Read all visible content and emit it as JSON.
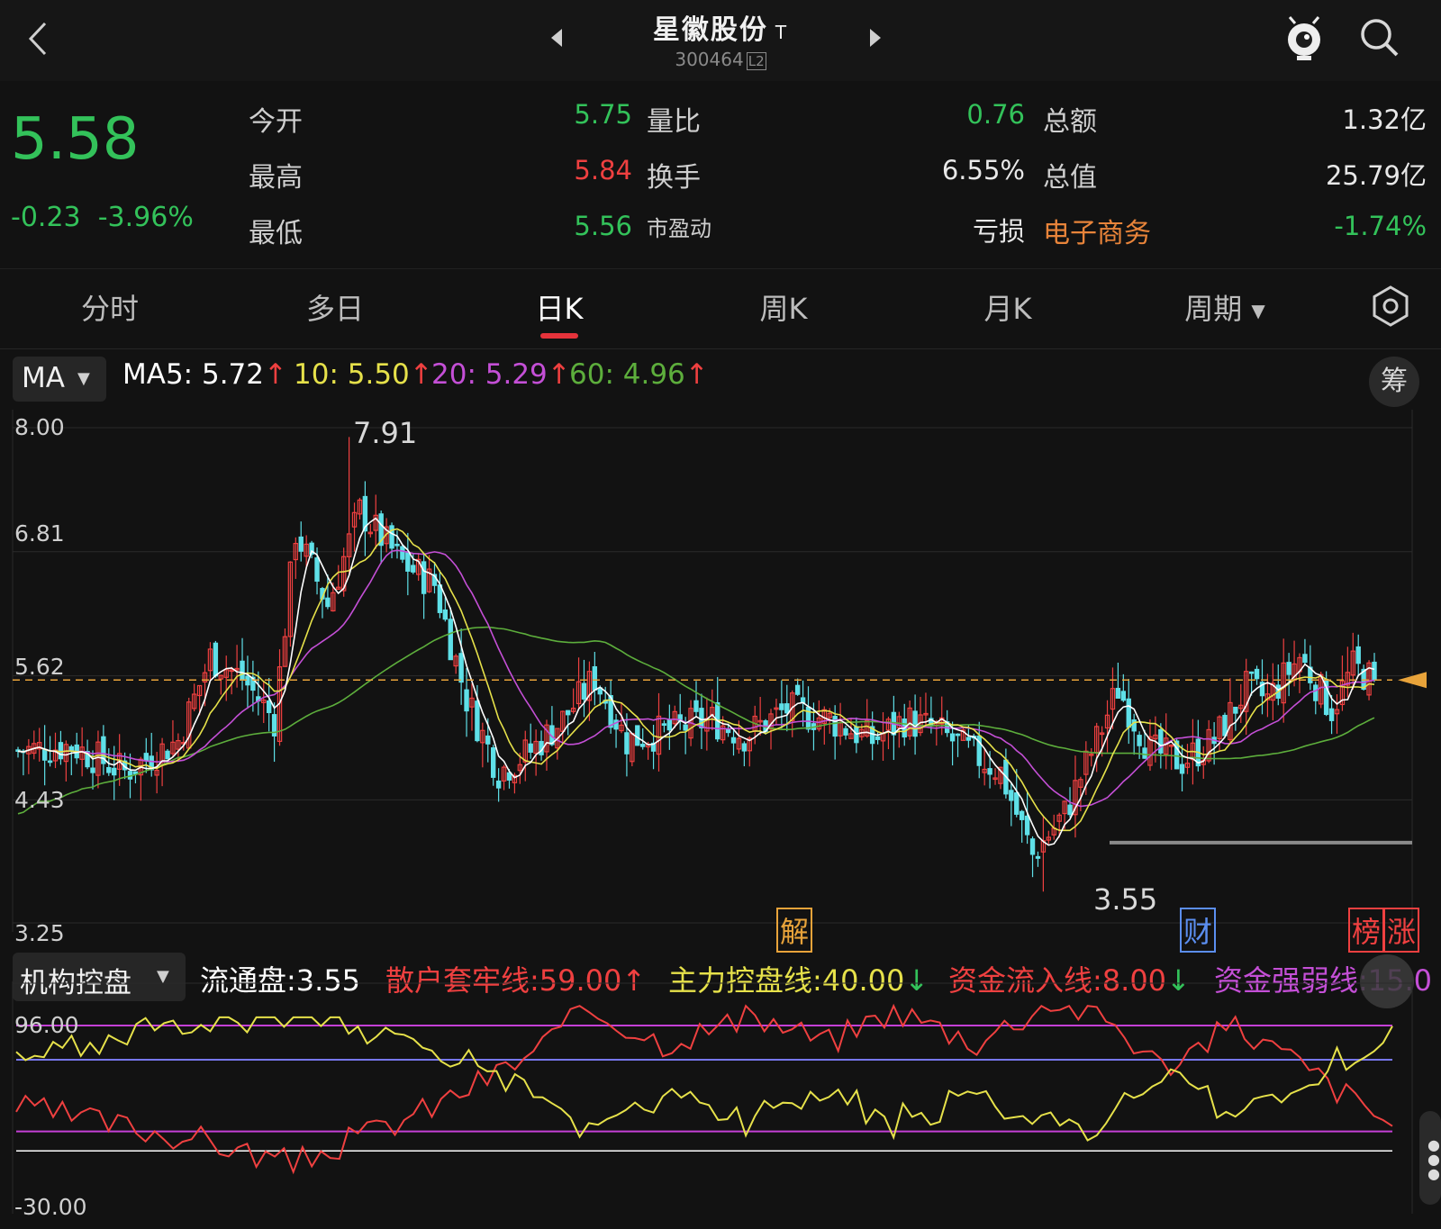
{
  "header": {
    "title": "星徽股份",
    "title_tag": "T",
    "code": "300464",
    "code_tag": "L2"
  },
  "quote": {
    "price": "5.58",
    "change": "-0.23",
    "change_pct": "-3.96%",
    "rows": [
      {
        "l1": "今开",
        "v1": "5.75",
        "c1": "#33c25a",
        "l2": "量比",
        "v2": "0.76",
        "c2": "#33c25a",
        "l3": "总额",
        "v3": "1.32亿",
        "c3": "#e8e8e8"
      },
      {
        "l1": "最高",
        "v1": "5.84",
        "c1": "#ef4040",
        "l2": "换手",
        "v2": "6.55%",
        "c2": "#e8e8e8",
        "l3": "总值",
        "v3": "25.79亿",
        "c3": "#e8e8e8"
      },
      {
        "l1": "最低",
        "v1": "5.56",
        "c1": "#33c25a",
        "l2": "市盈动",
        "v2": "亏损",
        "c2": "#e8e8e8",
        "l3": "电子商务",
        "v3": "-1.74%",
        "c3": "#33c25a"
      }
    ]
  },
  "tabs": [
    "分时",
    "多日",
    "日K",
    "周K",
    "月K",
    "周期"
  ],
  "active_tab": "日K",
  "ma_bar": {
    "selector": "MA",
    "ma5": "MA5: 5.72",
    "ma10": "10: 5.50",
    "ma20": "20: 5.29",
    "ma60": "60: 4.96",
    "chip_button": "筹"
  },
  "price_axis": {
    "labels": [
      "8.00",
      "6.81",
      "5.62",
      "4.43",
      "3.25"
    ]
  },
  "annotations": {
    "high": "7.91",
    "low": "3.55"
  },
  "event_badges": [
    "解",
    "财",
    "榜",
    "涨"
  ],
  "indicator": {
    "selector": "机构控盘",
    "float": "流通盘:3.55",
    "retail": "散户套牢线:59.00",
    "main": "主力控盘线:40.00",
    "inflow": "资金流入线:8.00",
    "strength": "资金强弱线:15.0",
    "axis_top": "96.00",
    "axis_bottom": "-30.00"
  },
  "colors": {
    "up": "#ef4040",
    "down": "#5fe0e8",
    "ma5": "#ffffff",
    "ma10": "#e6e14a",
    "ma20": "#c44fd6",
    "ma60": "#5dae3c",
    "dash": "#e8a33a"
  },
  "chart_data": {
    "type": "candlestick",
    "price_ylim": [
      3.25,
      8.0
    ],
    "current_price": 5.58,
    "marked_high": 7.91,
    "marked_low": 3.55,
    "ma_values": {
      "MA5": 5.72,
      "MA10": 5.5,
      "MA20": 5.29,
      "MA60": 4.96
    },
    "indicator_ylim": [
      -30,
      96
    ]
  }
}
